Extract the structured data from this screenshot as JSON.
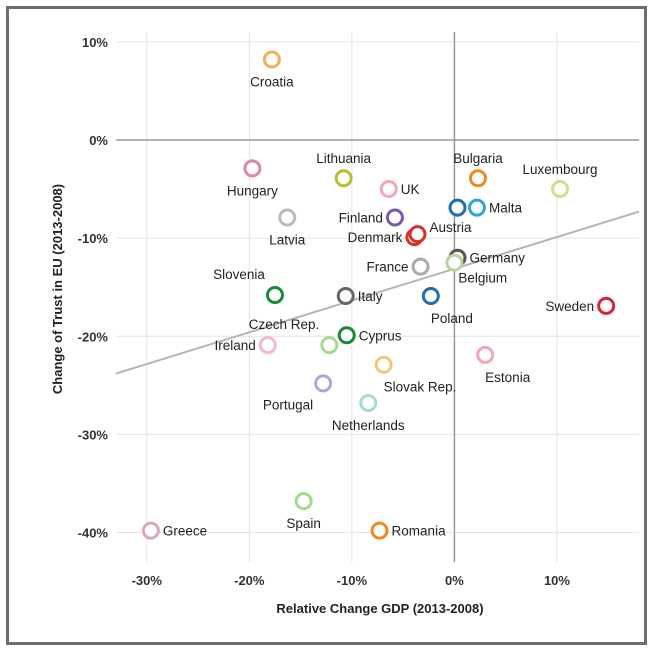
{
  "chart_data": {
    "type": "scatter",
    "xlabel": "Relative Change GDP (2013-2008)",
    "ylabel": "Change of Trust in EU (2013-2008)",
    "xlim": [
      -33,
      18
    ],
    "ylim": [
      -43,
      11
    ],
    "x_ticks": [
      -30,
      -20,
      -10,
      0,
      10
    ],
    "x_tick_labels": [
      "-30%",
      "-20%",
      "-10%",
      "0%",
      "10%"
    ],
    "y_ticks": [
      10,
      0,
      -10,
      -20,
      -30,
      -40
    ],
    "y_tick_labels": [
      "10%",
      "0%",
      "-10%",
      "-20%",
      "-30%",
      "-40%"
    ],
    "grid": true,
    "trendline": {
      "x": [
        -33,
        18
      ],
      "y": [
        -23.8,
        -7.3
      ]
    },
    "points": [
      {
        "name": "Croatia",
        "x": -17.8,
        "y": 8.2,
        "color": "#f0b060",
        "label_pos": "below"
      },
      {
        "name": "Hungary",
        "x": -19.7,
        "y": -2.9,
        "color": "#d98aa8",
        "label_pos": "below"
      },
      {
        "name": "Lithuania",
        "x": -10.8,
        "y": -3.9,
        "color": "#b5c030",
        "label_pos": "above"
      },
      {
        "name": "UK",
        "x": -6.4,
        "y": -5.0,
        "color": "#f4a6b6",
        "label_pos": "right"
      },
      {
        "name": "Bulgaria",
        "x": 2.3,
        "y": -3.9,
        "color": "#f08a20",
        "label_pos": "above"
      },
      {
        "name": "Luxembourg",
        "x": 10.3,
        "y": -5.0,
        "color": "#cce08a",
        "label_pos": "above"
      },
      {
        "name": "Latvia",
        "x": -16.3,
        "y": -7.9,
        "color": "#bbbbbb",
        "label_pos": "below"
      },
      {
        "name": "Finland",
        "x": -5.8,
        "y": -7.9,
        "color": "#7a5aa8",
        "label_pos": "left"
      },
      {
        "name": "Malta",
        "x": 2.2,
        "y": -6.9,
        "color": "#2aa8d8",
        "label_pos": "right"
      },
      {
        "name": "",
        "x": 0.3,
        "y": -6.9,
        "color": "#1f6fb0",
        "label_pos": "none"
      },
      {
        "name": "Denmark",
        "x": -3.9,
        "y": -9.9,
        "color": "#d9302a",
        "label_pos": "left"
      },
      {
        "name": "Austria",
        "x": -3.6,
        "y": -9.6,
        "color": "#d9302a",
        "label_pos": "right-up"
      },
      {
        "name": "France",
        "x": -3.3,
        "y": -12.9,
        "color": "#aaaaaa",
        "label_pos": "left"
      },
      {
        "name": "Germany",
        "x": 0.3,
        "y": -12.0,
        "color": "#555555",
        "label_pos": "right"
      },
      {
        "name": "Belgium",
        "x": 0.0,
        "y": -12.5,
        "color": "#b8d4a0",
        "label_pos": "right-down"
      },
      {
        "name": "Slovenia",
        "x": -17.5,
        "y": -15.8,
        "color": "#1a8a3a",
        "label_pos": "above-left"
      },
      {
        "name": "Italy",
        "x": -10.6,
        "y": -15.9,
        "color": "#666666",
        "label_pos": "right"
      },
      {
        "name": "Poland",
        "x": -2.3,
        "y": -15.9,
        "color": "#1f6fb0",
        "label_pos": "below-right"
      },
      {
        "name": "Sweden",
        "x": 14.8,
        "y": -16.9,
        "color": "#d9233a",
        "label_pos": "left"
      },
      {
        "name": "Czech Rep.",
        "x": -12.2,
        "y": -20.9,
        "color": "#a8d890",
        "label_pos": "above-left"
      },
      {
        "name": "Cyprus",
        "x": -10.5,
        "y": -19.9,
        "color": "#1a8a3a",
        "label_pos": "right"
      },
      {
        "name": "Ireland",
        "x": -18.2,
        "y": -20.9,
        "color": "#f4b8c8",
        "label_pos": "left"
      },
      {
        "name": "Estonia",
        "x": 3.0,
        "y": -21.9,
        "color": "#f4a6b6",
        "label_pos": "below-right"
      },
      {
        "name": "Slovak Rep.",
        "x": -6.9,
        "y": -22.9,
        "color": "#f0c878",
        "label_pos": "below-right"
      },
      {
        "name": "Portugal",
        "x": -12.8,
        "y": -24.8,
        "color": "#b0a8d8",
        "label_pos": "below-left"
      },
      {
        "name": "Netherlands",
        "x": -8.4,
        "y": -26.8,
        "color": "#a8d8d8",
        "label_pos": "below"
      },
      {
        "name": "Spain",
        "x": -14.7,
        "y": -36.8,
        "color": "#a8d890",
        "label_pos": "below"
      },
      {
        "name": "Greece",
        "x": -29.6,
        "y": -39.8,
        "color": "#d8a8b8",
        "label_pos": "right"
      },
      {
        "name": "Romania",
        "x": -7.3,
        "y": -39.8,
        "color": "#f08a20",
        "label_pos": "right"
      }
    ]
  }
}
